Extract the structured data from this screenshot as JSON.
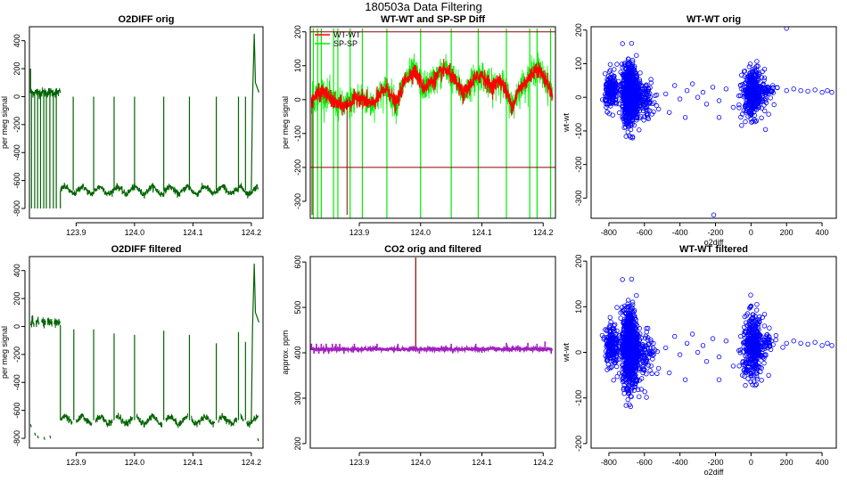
{
  "figure": {
    "title": "180503a   Data Filtering"
  },
  "colors": {
    "o2": "#006400",
    "wtwt": "#ff0000",
    "spsp": "#00ee00",
    "limit": "#8b0000",
    "co2_filtered": "#a020c0",
    "co2_orig": "#8b0000",
    "scatter": "#0000ff",
    "axis": "#000000"
  },
  "chart_data": [
    {
      "id": "o2diff-orig",
      "type": "line",
      "title": "O2DIFF orig",
      "xlabel": "",
      "ylabel": "per meg signal",
      "xlim": [
        123.82,
        124.22
      ],
      "ylim": [
        -870,
        500
      ],
      "xticks": [
        123.9,
        124.0,
        124.1,
        124.2
      ],
      "xtick_labels": [
        "123.9",
        "124.0",
        "124.1",
        "124.2"
      ],
      "yticks": [
        -800,
        -600,
        -400,
        -200,
        0,
        200,
        400
      ],
      "ytick_labels": [
        "-800",
        "-600",
        "-400",
        "-200",
        "0",
        "200",
        "400"
      ],
      "series": [
        {
          "name": "O2DIFF",
          "color_key": "o2",
          "baseline": {
            "x_start": 123.822,
            "x_end": 123.873,
            "level": 30,
            "noise": 18
          },
          "main_segment": {
            "x_start": 123.873,
            "x_end": 124.212,
            "level": -670,
            "noise": 12,
            "period": 0.03,
            "amplitude": 25
          },
          "spikes": [
            {
              "x": 123.822,
              "y": 200
            },
            {
              "x": 123.8235,
              "y": -800
            },
            {
              "x": 123.829,
              "y": -800
            },
            {
              "x": 123.834,
              "y": -800
            },
            {
              "x": 123.839,
              "y": -800
            },
            {
              "x": 123.8445,
              "y": -800
            },
            {
              "x": 123.849,
              "y": -800
            },
            {
              "x": 123.855,
              "y": -800
            },
            {
              "x": 123.861,
              "y": -800
            },
            {
              "x": 123.866,
              "y": -800
            },
            {
              "x": 123.873,
              "y": -800
            },
            {
              "x": 123.895,
              "y": 0
            },
            {
              "x": 123.93,
              "y": 0
            },
            {
              "x": 123.965,
              "y": 0
            },
            {
              "x": 124.0,
              "y": 0
            },
            {
              "x": 124.05,
              "y": 0
            },
            {
              "x": 124.094,
              "y": 0
            },
            {
              "x": 124.14,
              "y": 0
            },
            {
              "x": 124.178,
              "y": 0
            },
            {
              "x": 124.19,
              "y": 0
            }
          ],
          "end_spike": {
            "x_start": 124.2,
            "x_peak": 124.205,
            "y_peak": 450,
            "x_end": 124.213,
            "y_end": 30
          }
        }
      ]
    },
    {
      "id": "wtwt-spsp-diff",
      "type": "line",
      "title": "WT-WT and SP-SP Diff",
      "xlabel": "",
      "ylabel": "per meg signal",
      "xlim": [
        123.82,
        124.22
      ],
      "ylim": [
        -350,
        215
      ],
      "xticks": [
        123.9,
        124.0,
        124.1,
        124.2
      ],
      "xtick_labels": [
        "123.9",
        "124.0",
        "124.1",
        "124.2"
      ],
      "yticks": [
        -300,
        -200,
        -100,
        0,
        100,
        200
      ],
      "ytick_labels": [
        "-300",
        "-200",
        "-100",
        "0",
        "100",
        "200"
      ],
      "hlines": [
        200,
        -200
      ],
      "legend": {
        "position": "top-left",
        "entries": [
          {
            "label": "WT-WT",
            "color_key": "wtwt"
          },
          {
            "label": "SP-SP",
            "color_key": "spsp"
          }
        ]
      },
      "series": [
        {
          "name": "WT-WT",
          "color_key": "wtwt",
          "noise": 12
        },
        {
          "name": "SP-SP",
          "color_key": "spsp",
          "noise": 22
        }
      ],
      "shared_wave": {
        "x_start": 123.822,
        "x_end": 124.215,
        "knots_x": [
          123.822,
          123.84,
          123.86,
          123.875,
          123.9,
          123.92,
          123.945,
          123.96,
          123.975,
          123.99,
          124.005,
          124.02,
          124.04,
          124.05,
          124.07,
          124.085,
          124.1,
          124.115,
          124.13,
          124.15,
          124.16,
          124.175,
          124.19,
          124.205,
          124.215
        ],
        "knots_y": [
          0,
          25,
          -10,
          -20,
          10,
          -15,
          35,
          -15,
          60,
          85,
          35,
          55,
          90,
          70,
          15,
          55,
          75,
          35,
          60,
          -20,
          30,
          60,
          95,
          55,
          15
        ]
      },
      "spsp_spikes": [
        123.825,
        123.832,
        123.838,
        123.858,
        123.865,
        123.885,
        123.905,
        123.945,
        124.0,
        124.05,
        124.094,
        124.14,
        124.178,
        124.19,
        124.212
      ],
      "wtwt_spikes": [
        123.823,
        123.88
      ]
    },
    {
      "id": "wtwt-orig",
      "type": "scatter",
      "title": "WT-WT orig",
      "xlabel": "o2diff",
      "ylabel": "wt-wt",
      "xlim": [
        -900,
        480
      ],
      "ylim": [
        -360,
        210
      ],
      "xticks": [
        -800,
        -600,
        -400,
        -200,
        0,
        200,
        400
      ],
      "xtick_labels": [
        "-800",
        "-600",
        "-400",
        "-200",
        "0",
        "200",
        "400"
      ],
      "yticks": [
        -300,
        -200,
        -100,
        0,
        100,
        200
      ],
      "ytick_labels": [
        "-300",
        "-200",
        "-100",
        "0",
        "100",
        "200"
      ],
      "clusters": [
        {
          "cx": -680,
          "cy": 10,
          "sx": 22,
          "sy": 42,
          "n": 900
        },
        {
          "cx": -785,
          "cy": 15,
          "sx": 18,
          "sy": 25,
          "n": 180
        },
        {
          "cx": -610,
          "cy": -5,
          "sx": 35,
          "sy": 30,
          "n": 120
        },
        {
          "cx": 10,
          "cy": 10,
          "sx": 28,
          "sy": 35,
          "n": 350
        },
        {
          "cx": 70,
          "cy": 20,
          "sx": 40,
          "sy": 12,
          "n": 60
        }
      ],
      "extra_points": [
        [
          -480,
          10
        ],
        [
          -430,
          35
        ],
        [
          -400,
          -5
        ],
        [
          -360,
          20
        ],
        [
          -330,
          40
        ],
        [
          -300,
          0
        ],
        [
          -270,
          15
        ],
        [
          -250,
          -20
        ],
        [
          -215,
          30
        ],
        [
          -180,
          -10
        ],
        [
          -140,
          25
        ],
        [
          -100,
          -30
        ],
        [
          -60,
          5
        ],
        [
          -520,
          -35
        ],
        [
          -460,
          -45
        ],
        [
          -180,
          -60
        ],
        [
          -370,
          -60
        ],
        [
          200,
          205
        ],
        [
          -210,
          -350
        ],
        [
          -540,
          5
        ],
        [
          200,
          20
        ],
        [
          240,
          25
        ],
        [
          280,
          20
        ],
        [
          320,
          18
        ],
        [
          360,
          22
        ],
        [
          400,
          15
        ],
        [
          430,
          20
        ],
        [
          455,
          15
        ]
      ]
    },
    {
      "id": "o2diff-filtered",
      "type": "line",
      "title": "O2DIFF filtered",
      "xlabel": "",
      "ylabel": "per meg signal",
      "xlim": [
        123.82,
        124.22
      ],
      "ylim": [
        -870,
        500
      ],
      "xticks": [
        123.9,
        124.0,
        124.1,
        124.2
      ],
      "xtick_labels": [
        "123.9",
        "124.0",
        "124.1",
        "124.2"
      ],
      "yticks": [
        -800,
        -600,
        -400,
        -200,
        0,
        200,
        400
      ],
      "ytick_labels": [
        "-800",
        "-600",
        "-400",
        "-200",
        "0",
        "200",
        "400"
      ],
      "series": [
        {
          "name": "O2DIFF filtered",
          "color_key": "o2",
          "baseline": {
            "x_start": 123.822,
            "x_end": 123.873,
            "level": 30,
            "noise": 18
          },
          "main_segment": {
            "x_start": 123.873,
            "x_end": 124.212,
            "level": -670,
            "noise": 12,
            "period": 0.03,
            "amplitude": 25
          },
          "gaps": [
            [
              123.868,
              123.873
            ],
            [
              123.893,
              123.9
            ],
            [
              123.927,
              123.933
            ],
            [
              123.962,
              123.968
            ],
            [
              123.997,
              124.003
            ],
            [
              124.047,
              124.053
            ],
            [
              124.091,
              124.097
            ],
            [
              124.137,
              124.143
            ],
            [
              124.175,
              124.181
            ],
            [
              124.187,
              124.192
            ]
          ],
          "baseline_gaps": [
            [
              123.828,
              123.831
            ],
            [
              123.837,
              123.84
            ],
            [
              123.848,
              123.851
            ],
            [
              123.859,
              123.862
            ]
          ],
          "spikes": [
            {
              "x": 123.873,
              "y": 10
            },
            {
              "x": 123.896,
              "y": -20
            },
            {
              "x": 123.93,
              "y": -20
            },
            {
              "x": 123.965,
              "y": -50
            },
            {
              "x": 124.0,
              "y": -60
            },
            {
              "x": 124.05,
              "y": -30
            },
            {
              "x": 124.094,
              "y": -60
            },
            {
              "x": 124.14,
              "y": -120
            },
            {
              "x": 124.178,
              "y": -40
            },
            {
              "x": 124.19,
              "y": -110
            }
          ],
          "end_spike": {
            "x_start": 124.2,
            "x_peak": 124.205,
            "y_peak": 450,
            "x_end": 124.213,
            "y_end": 30
          },
          "low_fragments": [
            [
              123.822,
              -700
            ],
            [
              123.829,
              -760
            ],
            [
              123.834,
              -780
            ],
            [
              123.845,
              -790
            ],
            [
              123.855,
              -780
            ],
            [
              124.211,
              -800
            ]
          ]
        }
      ]
    },
    {
      "id": "co2-orig-filtered",
      "type": "line",
      "title": "CO2 orig and filtered",
      "xlabel": "",
      "ylabel": "approx. ppm",
      "xlim": [
        123.82,
        124.22
      ],
      "ylim": [
        190,
        612
      ],
      "xticks": [
        123.9,
        124.0,
        124.1,
        124.2
      ],
      "xtick_labels": [
        "123.9",
        "124.0",
        "124.1",
        "124.2"
      ],
      "yticks": [
        200,
        300,
        400,
        500,
        600
      ],
      "ytick_labels": [
        "200",
        "300",
        "400",
        "500",
        "600"
      ],
      "series": [
        {
          "name": "CO2 filtered",
          "color_key": "co2_filtered",
          "level": 408,
          "noise": 1.5
        },
        {
          "name": "CO2 orig",
          "color_key": "co2_orig",
          "spike": {
            "x": 123.992,
            "y": 610
          }
        }
      ],
      "filtered_spikes": [
        {
          "x": 123.822,
          "y": 420
        },
        {
          "x": 123.826,
          "y": 398
        },
        {
          "x": 123.83,
          "y": 420
        },
        {
          "x": 123.834,
          "y": 398
        },
        {
          "x": 123.838,
          "y": 420
        },
        {
          "x": 123.842,
          "y": 398
        },
        {
          "x": 123.846,
          "y": 420
        },
        {
          "x": 123.85,
          "y": 398
        },
        {
          "x": 123.856,
          "y": 420
        },
        {
          "x": 123.862,
          "y": 420
        },
        {
          "x": 123.868,
          "y": 420
        },
        {
          "x": 123.875,
          "y": 398
        },
        {
          "x": 123.892,
          "y": 420
        },
        {
          "x": 123.929,
          "y": 420
        },
        {
          "x": 123.963,
          "y": 420
        },
        {
          "x": 123.998,
          "y": 398
        },
        {
          "x": 124.05,
          "y": 420
        },
        {
          "x": 124.09,
          "y": 420
        },
        {
          "x": 124.1,
          "y": 400
        },
        {
          "x": 124.14,
          "y": 422
        },
        {
          "x": 124.175,
          "y": 422
        },
        {
          "x": 124.19,
          "y": 420
        },
        {
          "x": 124.203,
          "y": 425
        },
        {
          "x": 124.213,
          "y": 398
        }
      ]
    },
    {
      "id": "wtwt-filtered",
      "type": "scatter",
      "title": "WT-WT filtered",
      "xlabel": "o2diff",
      "ylabel": "wt-wt",
      "xlim": [
        -900,
        480
      ],
      "ylim": [
        -210,
        210
      ],
      "xticks": [
        -800,
        -600,
        -400,
        -200,
        0,
        200,
        400
      ],
      "xtick_labels": [
        "-800",
        "-600",
        "-400",
        "-200",
        "0",
        "200",
        "400"
      ],
      "yticks": [
        -200,
        -100,
        0,
        100,
        200
      ],
      "ytick_labels": [
        "-200",
        "-100",
        "0",
        "100",
        "200"
      ],
      "clusters": [
        {
          "cx": -680,
          "cy": 10,
          "sx": 22,
          "sy": 42,
          "n": 900
        },
        {
          "cx": -785,
          "cy": 15,
          "sx": 18,
          "sy": 25,
          "n": 180
        },
        {
          "cx": -610,
          "cy": -5,
          "sx": 35,
          "sy": 30,
          "n": 120
        },
        {
          "cx": 10,
          "cy": 10,
          "sx": 28,
          "sy": 35,
          "n": 350
        },
        {
          "cx": 70,
          "cy": 20,
          "sx": 40,
          "sy": 12,
          "n": 60
        }
      ],
      "extra_points": [
        [
          -480,
          10
        ],
        [
          -430,
          35
        ],
        [
          -400,
          -5
        ],
        [
          -360,
          20
        ],
        [
          -330,
          40
        ],
        [
          -300,
          0
        ],
        [
          -270,
          15
        ],
        [
          -250,
          -20
        ],
        [
          -215,
          30
        ],
        [
          -180,
          -10
        ],
        [
          -140,
          25
        ],
        [
          -100,
          -30
        ],
        [
          -60,
          5
        ],
        [
          -520,
          -35
        ],
        [
          -460,
          -45
        ],
        [
          -180,
          -60
        ],
        [
          -370,
          -60
        ],
        [
          -540,
          5
        ],
        [
          200,
          20
        ],
        [
          240,
          25
        ],
        [
          280,
          20
        ],
        [
          320,
          18
        ],
        [
          360,
          22
        ],
        [
          400,
          15
        ],
        [
          430,
          20
        ],
        [
          455,
          15
        ]
      ]
    }
  ]
}
